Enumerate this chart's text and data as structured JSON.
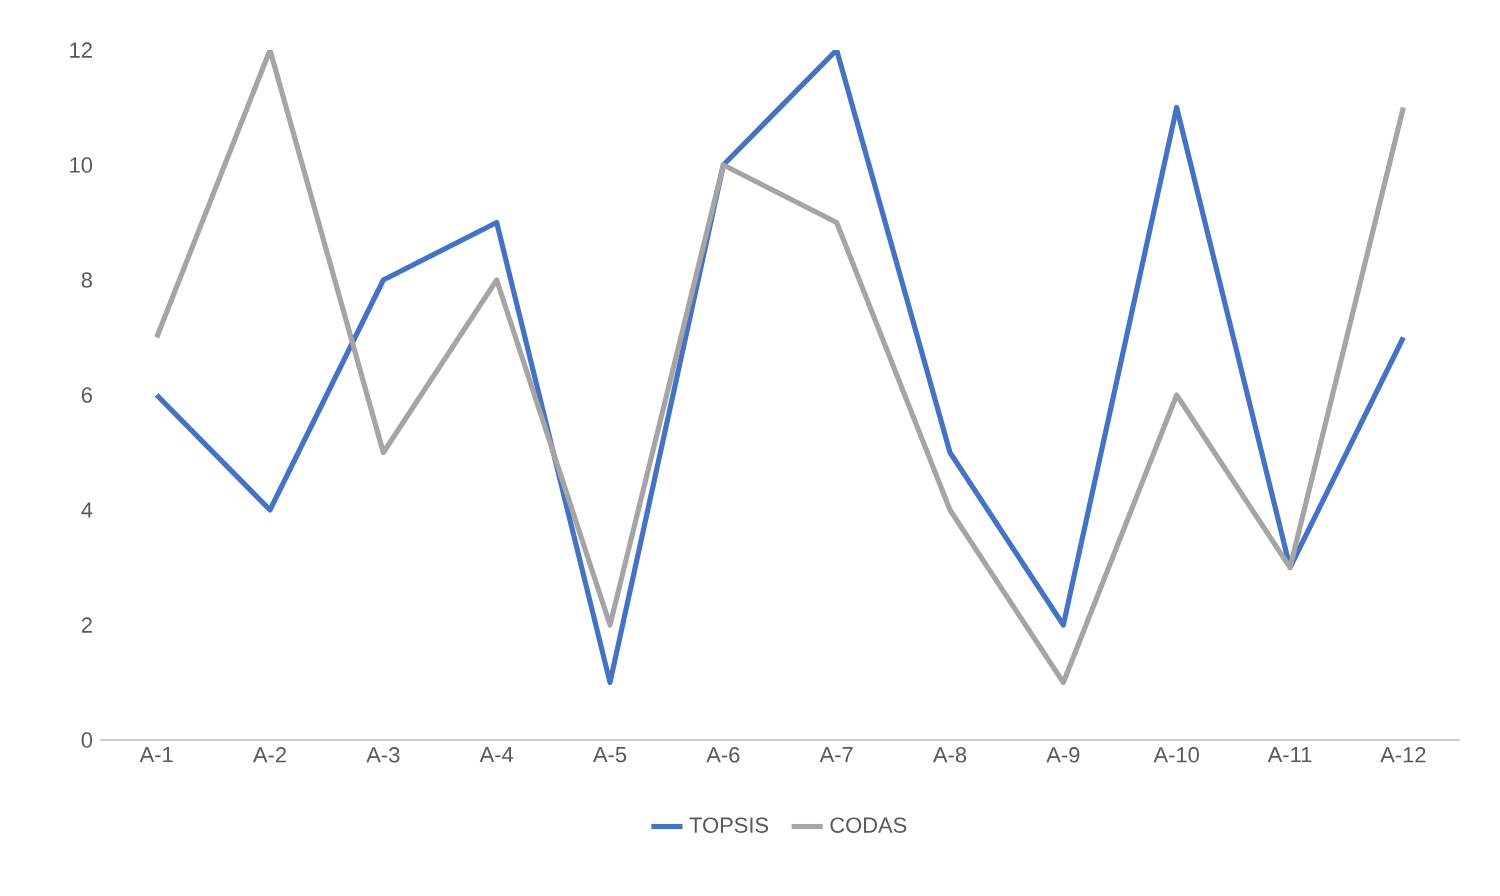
{
  "chart_data": {
    "type": "line",
    "categories": [
      "A-1",
      "A-2",
      "A-3",
      "A-4",
      "A-5",
      "A-6",
      "A-7",
      "A-8",
      "A-9",
      "A-10",
      "A-11",
      "A-12"
    ],
    "series": [
      {
        "name": "TOPSIS",
        "color": "#4472c4",
        "values": [
          6,
          4,
          8,
          9,
          1,
          10,
          12,
          5,
          2,
          11,
          3,
          7
        ]
      },
      {
        "name": "CODAS",
        "color": "#a5a5a5",
        "values": [
          7,
          12,
          5,
          8,
          2,
          10,
          9,
          4,
          1,
          6,
          3,
          11
        ]
      }
    ],
    "ylim": [
      0,
      12
    ],
    "yticks": [
      0,
      2,
      4,
      6,
      8,
      10,
      12
    ],
    "legend": "bottom"
  }
}
